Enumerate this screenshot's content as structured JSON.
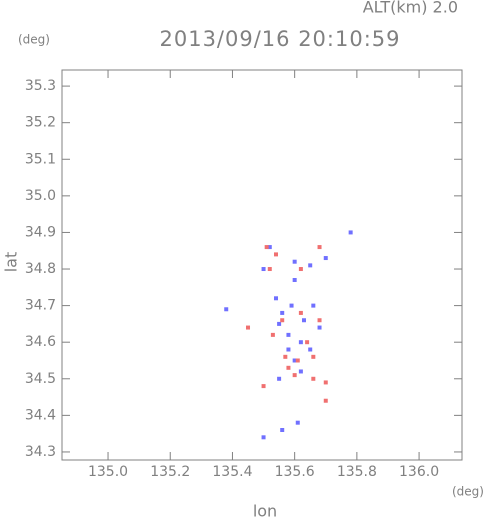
{
  "chart_data": {
    "type": "scatter",
    "title": "2013/09/16 20:10:59",
    "subtitle": "ALT(km) 2.0",
    "x_label": "lon",
    "y_label": "lat",
    "x_unit": "(deg)",
    "y_unit": "(deg)",
    "xlim": [
      134.852,
      136.138
    ],
    "ylim": [
      34.278,
      35.344
    ],
    "xticks": [
      {
        "value": 135,
        "label": "135.0"
      },
      135.2,
      135.4,
      135.6,
      135.8,
      {
        "value": 136,
        "label": "136.0"
      }
    ],
    "yticks": [
      34.3,
      34.4,
      34.5,
      34.6,
      34.7,
      34.8,
      34.9,
      {
        "value": 35,
        "label": "35.0"
      },
      35.1,
      35.2,
      35.3
    ],
    "series": [
      {
        "color": "#7070ff",
        "x": [
          135.52,
          135.5,
          135.6,
          135.65,
          135.7,
          135.78,
          135.55,
          135.58,
          135.62,
          135.6,
          135.65,
          135.56,
          135.63,
          135.59,
          135.68,
          135.38,
          135.55,
          135.62,
          135.58,
          135.66,
          135.5,
          135.56,
          135.61,
          135.54,
          135.6
        ],
        "values": [
          34.86,
          34.8,
          34.82,
          34.81,
          34.83,
          34.9,
          34.65,
          34.62,
          34.6,
          34.55,
          34.58,
          34.68,
          34.66,
          34.7,
          34.64,
          34.69,
          34.5,
          34.52,
          34.58,
          34.7,
          34.34,
          34.36,
          34.38,
          34.72,
          34.77
        ]
      },
      {
        "color": "#f07070",
        "x": [
          135.51,
          135.52,
          135.54,
          135.68,
          135.62,
          135.45,
          135.53,
          135.57,
          135.61,
          135.64,
          135.68,
          135.6,
          135.66,
          135.7,
          135.5,
          135.7,
          135.56,
          135.62,
          135.58,
          135.66
        ],
        "values": [
          34.86,
          34.8,
          34.84,
          34.86,
          34.8,
          34.64,
          34.62,
          34.56,
          34.55,
          34.6,
          34.66,
          34.51,
          34.5,
          34.49,
          34.48,
          34.44,
          34.66,
          34.68,
          34.53,
          34.56
        ]
      }
    ]
  }
}
